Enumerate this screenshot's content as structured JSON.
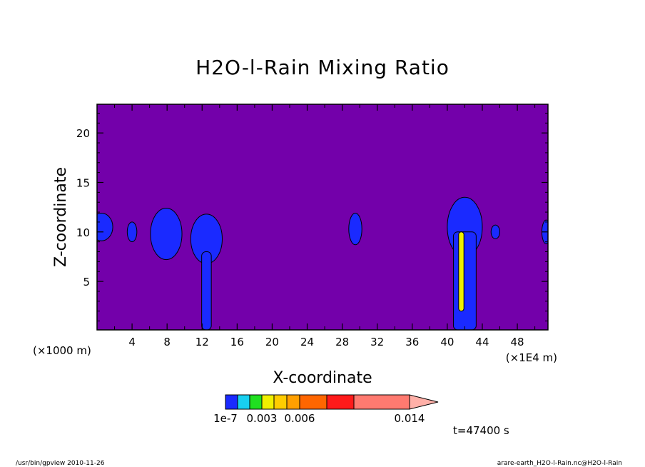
{
  "chart_data": {
    "type": "heatmap",
    "title": "H2O-l-Rain Mixing Ratio",
    "xlabel": "X-coordinate",
    "ylabel": "Z-coordinate",
    "x_unit_left": "(×1000 m)",
    "x_unit_right": "(×1E4 m)",
    "xlim": [
      0,
      51.5
    ],
    "ylim": [
      0.1,
      22.9
    ],
    "x_ticks": [
      4,
      8,
      12,
      16,
      20,
      24,
      28,
      32,
      36,
      40,
      44,
      48
    ],
    "y_ticks": [
      5,
      10,
      15,
      20
    ],
    "background_color": "#7300aa",
    "colorbar": {
      "colors": [
        "#1a2aff",
        "#18d0f0",
        "#20e020",
        "#f0f000",
        "#ffcc00",
        "#ffa000",
        "#ff6600",
        "#ff1a1a",
        "#ff7a70",
        "#ffb0a8"
      ],
      "tick_labels": [
        "1e-7",
        "0.003",
        "0.006",
        "0.014"
      ],
      "tick_values": [
        1e-07,
        0.003,
        0.006,
        0.014
      ]
    },
    "features": [
      {
        "name": "cloud",
        "x_center": 0.5,
        "z_center": 10.5,
        "x_halfwidth": 1.3,
        "z_halfheight": 1.4,
        "level": "1e-7"
      },
      {
        "name": "cloud",
        "x_center": 4.0,
        "z_center": 10.0,
        "x_halfwidth": 0.55,
        "z_halfheight": 1.0,
        "level": "1e-7"
      },
      {
        "name": "cloud",
        "x_center": 7.9,
        "z_center": 9.8,
        "x_halfwidth": 1.8,
        "z_halfheight": 2.6,
        "level": "1e-7"
      },
      {
        "name": "cloud",
        "x_center": 12.5,
        "z_center": 9.3,
        "x_halfwidth": 1.8,
        "z_halfheight": 2.5,
        "level": "1e-7"
      },
      {
        "name": "rain shaft",
        "x_center": 12.5,
        "z_bottom": 0.1,
        "z_top": 8.0,
        "x_halfwidth": 0.55,
        "level": "1e-7"
      },
      {
        "name": "cloud",
        "x_center": 29.5,
        "z_center": 10.3,
        "x_halfwidth": 0.75,
        "z_halfheight": 1.6,
        "level": "1e-7"
      },
      {
        "name": "cloud",
        "x_center": 42.0,
        "z_center": 10.5,
        "x_halfwidth": 2.0,
        "z_halfheight": 3.0,
        "level": "1e-7"
      },
      {
        "name": "rain shaft",
        "x_center": 42.0,
        "z_bottom": 0.1,
        "z_top": 10.0,
        "x_halfwidth": 1.3,
        "level": "1e-7"
      },
      {
        "name": "core",
        "x_center": 41.6,
        "z_bottom": 2.0,
        "z_top": 10.0,
        "x_halfwidth": 0.3,
        "level": "0.003"
      },
      {
        "name": "cloud",
        "x_center": 45.5,
        "z_center": 10.0,
        "x_halfwidth": 0.5,
        "z_halfheight": 0.7,
        "level": "1e-7"
      },
      {
        "name": "cloud",
        "x_center": 51.3,
        "z_center": 10.0,
        "x_halfwidth": 0.5,
        "z_halfheight": 1.2,
        "level": "1e-7"
      }
    ]
  },
  "annotations": {
    "time": "t=47400 s",
    "footer_left": "/usr/bin/gpview   2010-11-26",
    "footer_right": "arare-earth_H2O-l-Rain.nc@H2O-l-Rain"
  }
}
